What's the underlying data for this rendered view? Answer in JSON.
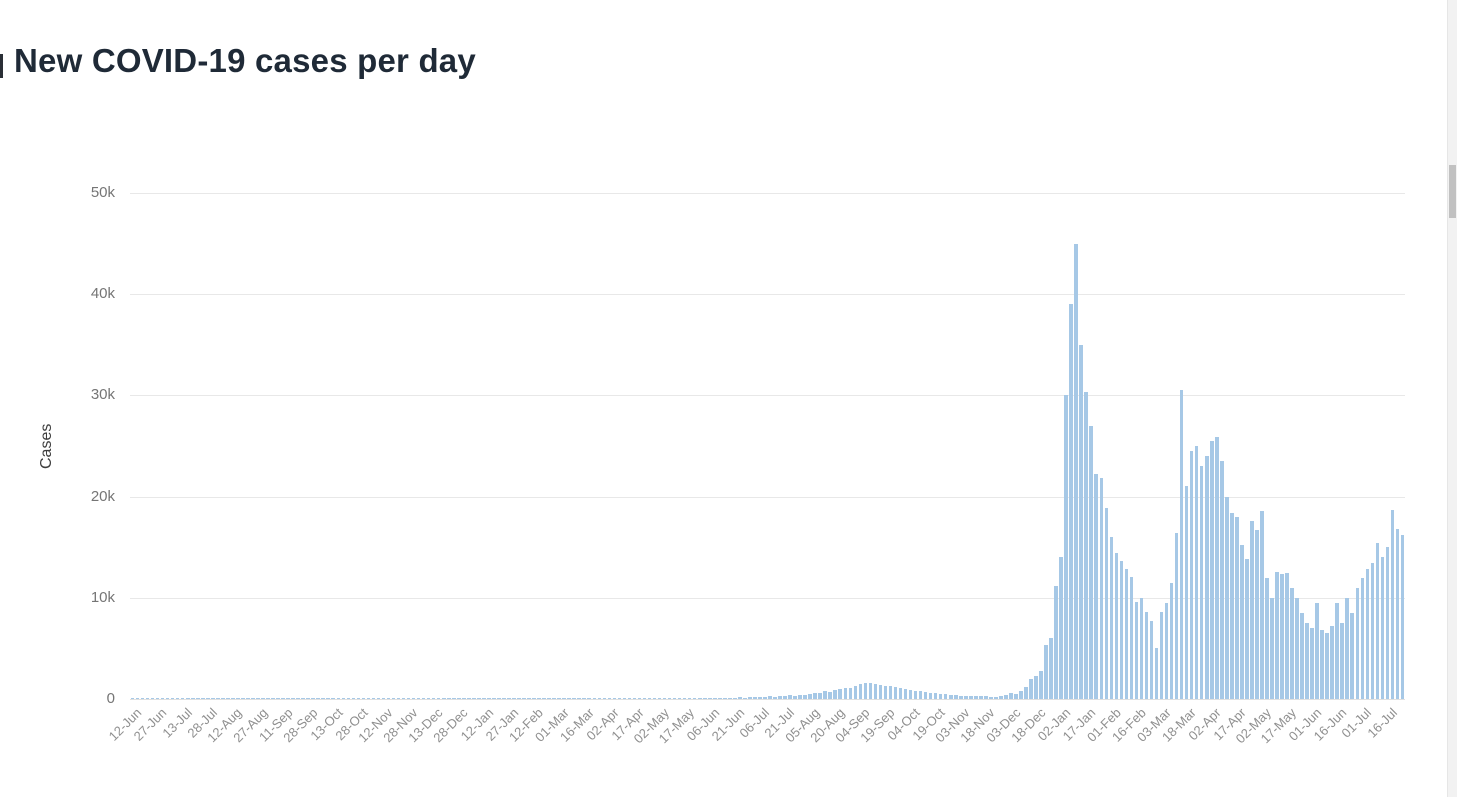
{
  "header": {
    "title": "New COVID-19 cases per day"
  },
  "colors": {
    "bar": "#a6c8e6",
    "grid": "#e8e8e8",
    "title_text": "#1f2a37",
    "y_tick_text": "#757575",
    "x_tick_text": "#8f8f8f",
    "scrollbar_track": "#f2f2f2",
    "scrollbar_thumb": "#c1c1c1"
  },
  "chart_data": {
    "type": "bar",
    "title": "New COVID-19 cases per day",
    "xlabel": "",
    "ylabel": "Cases",
    "ylim": [
      0,
      50000
    ],
    "grid": true,
    "legend": "none",
    "y_ticks": [
      "0",
      "10k",
      "20k",
      "30k",
      "40k",
      "50k"
    ],
    "y_tick_values": [
      0,
      10000,
      20000,
      30000,
      40000,
      50000
    ],
    "x_tick_every": 5,
    "x_tick_labels": [
      "12-Jun",
      "27-Jun",
      "13-Jul",
      "28-Jul",
      "12-Aug",
      "27-Aug",
      "11-Sep",
      "28-Sep",
      "13-Oct",
      "28-Oct",
      "12-Nov",
      "28-Nov",
      "13-Dec",
      "28-Dec",
      "12-Jan",
      "27-Jan",
      "12-Feb",
      "01-Mar",
      "16-Mar",
      "02-Apr",
      "17-Apr",
      "02-May",
      "17-May",
      "06-Jun",
      "21-Jun",
      "06-Jul",
      "21-Jul",
      "05-Aug",
      "20-Aug",
      "04-Sep",
      "19-Sep",
      "04-Oct",
      "19-Oct",
      "03-Nov",
      "18-Nov",
      "03-Dec",
      "18-Dec",
      "02-Jan",
      "17-Jan",
      "01-Feb",
      "16-Feb",
      "03-Mar",
      "18-Mar",
      "02-Apr",
      "17-Apr",
      "02-May",
      "17-May",
      "01-Jun",
      "16-Jun",
      "01-Jul",
      "16-Jul"
    ],
    "values": [
      3,
      5,
      8,
      6,
      10,
      12,
      9,
      14,
      11,
      16,
      13,
      18,
      15,
      12,
      17,
      20,
      16,
      14,
      19,
      22,
      18,
      15,
      20,
      24,
      19,
      16,
      22,
      25,
      21,
      18,
      23,
      26,
      20,
      17,
      24,
      27,
      22,
      19,
      25,
      28,
      24,
      20,
      26,
      30,
      25,
      21,
      28,
      32,
      26,
      22,
      29,
      34,
      27,
      23,
      30,
      35,
      28,
      24,
      32,
      36,
      30,
      25,
      33,
      38,
      31,
      26,
      34,
      40,
      32,
      27,
      36,
      42,
      33,
      28,
      38,
      44,
      35,
      30,
      40,
      46,
      38,
      32,
      42,
      48,
      40,
      34,
      45,
      52,
      42,
      36,
      48,
      55,
      45,
      38,
      52,
      60,
      48,
      40,
      55,
      65,
      50,
      42,
      58,
      70,
      55,
      45,
      62,
      75,
      58,
      48,
      68,
      85,
      62,
      52,
      75,
      95,
      80,
      95,
      110,
      100,
      130,
      150,
      140,
      170,
      200,
      180,
      220,
      260,
      240,
      280,
      300,
      360,
      330,
      420,
      390,
      480,
      560,
      640,
      760,
      700,
      880,
      1000,
      1120,
      1060,
      1300,
      1500,
      1620,
      1540,
      1450,
      1380,
      1300,
      1240,
      1160,
      1050,
      980,
      900,
      820,
      750,
      680,
      620,
      560,
      500,
      450,
      400,
      360,
      320,
      300,
      280,
      260,
      280,
      250,
      220,
      240,
      300,
      400,
      600,
      500,
      800,
      1200,
      2000,
      2300,
      2800,
      5300,
      6000,
      11200,
      14000,
      30000,
      39000,
      45000,
      35000,
      30300,
      27000,
      22200,
      21800,
      18900,
      16000,
      14400,
      13600,
      12800,
      12100,
      9600,
      10000,
      8600,
      7700,
      5000,
      8600,
      9500,
      11500,
      16400,
      30500,
      21000,
      24500,
      25000,
      23000,
      24000,
      25500,
      25900,
      23500,
      20000,
      18400,
      18000,
      15200,
      13800,
      17600,
      16700,
      18600,
      12000,
      10000,
      12600,
      12400,
      12500,
      11000,
      10000,
      8500,
      7500,
      7000,
      9500,
      6800,
      6500,
      7200,
      9500,
      7500,
      10000,
      8500,
      11000,
      12000,
      12800,
      13400,
      15400,
      14000,
      15000,
      18700,
      16800,
      16200
    ]
  }
}
